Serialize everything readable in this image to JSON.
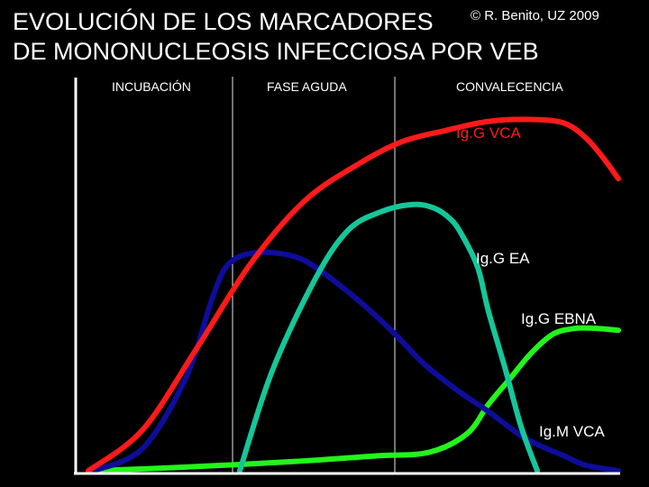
{
  "title": {
    "line1": "EVOLUCIÓN DE LOS MARCADORES",
    "line2": "DE MONONUCLEOSIS INFECCIOSA POR VEB"
  },
  "credit": "© R. Benito, UZ 2009",
  "chart_data": {
    "type": "line",
    "phases": [
      "INCUBACIÓN",
      "FASE AGUDA",
      "CONVALECENCIA"
    ],
    "xlim": [
      0,
      100
    ],
    "ylim": [
      0,
      100
    ],
    "grid": false,
    "legend": "inline labels",
    "series": [
      {
        "name": "Ig.G VCA",
        "color": "#ff1a1a",
        "x": [
          2,
          12,
          22,
          32,
          42,
          52,
          60,
          68,
          76,
          84,
          90,
          94,
          97,
          100
        ],
        "y": [
          0,
          11,
          33,
          56,
          73,
          83,
          89,
          92,
          94.5,
          95,
          94,
          90,
          85,
          79
        ]
      },
      {
        "name": "Ig.G EA",
        "color": "#14c79a",
        "x": [
          30,
          36,
          44,
          50,
          56,
          62,
          66,
          69,
          71,
          74,
          76,
          79,
          82,
          85
        ],
        "y": [
          0,
          27,
          52,
          65,
          70,
          72,
          71,
          68,
          64,
          55,
          43,
          28,
          12,
          0
        ]
      },
      {
        "name": "Ig.G EBNA",
        "color": "#22f51a",
        "x": [
          3,
          20,
          40,
          55,
          65,
          72,
          76,
          80,
          84,
          88,
          92,
          96,
          100
        ],
        "y": [
          0,
          1,
          2.5,
          4,
          5,
          10,
          18,
          25,
          32,
          37,
          38.5,
          38.5,
          38
        ]
      },
      {
        "name": "Ig.M VCA",
        "color": "#0d0d9a",
        "x": [
          3,
          12,
          20,
          25,
          28,
          33,
          40,
          45,
          52,
          58,
          64,
          70,
          76,
          82,
          86,
          90,
          94,
          100
        ],
        "y": [
          0,
          6,
          25,
          47,
          56,
          59,
          58,
          54,
          46,
          38,
          29,
          22,
          16,
          9.5,
          6.5,
          4,
          1.5,
          0
        ]
      }
    ]
  }
}
